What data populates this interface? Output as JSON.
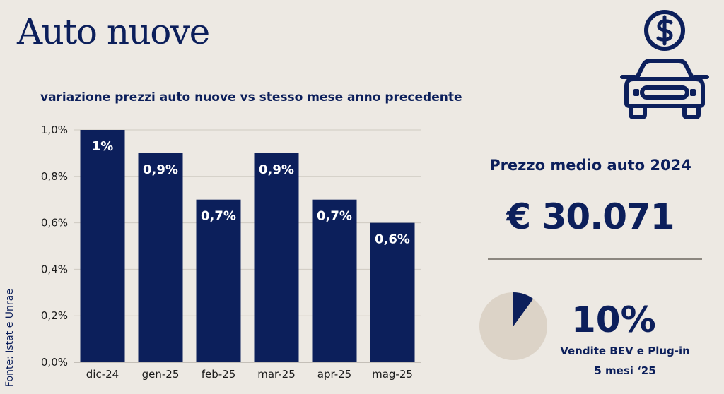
{
  "header": {
    "title": "Auto nuove"
  },
  "source": "Fonte: Istat e Unrae",
  "chart_data": {
    "type": "bar",
    "title": "variazione prezzi auto nuove vs stesso mese anno precedente",
    "categories": [
      "dic-24",
      "gen-25",
      "feb-25",
      "mar-25",
      "apr-25",
      "mag-25"
    ],
    "values": [
      1.0,
      0.9,
      0.7,
      0.9,
      0.7,
      0.6
    ],
    "data_labels": [
      "1%",
      "0,9%",
      "0,7%",
      "0,9%",
      "0,7%",
      "0,6%"
    ],
    "y_ticks": [
      "0,0%",
      "0,2%",
      "0,4%",
      "0,6%",
      "0,8%",
      "1,0%"
    ],
    "ylim": [
      0,
      1.0
    ],
    "grid": true,
    "bar_color": "#0c1f5b"
  },
  "kpi": {
    "label": "Prezzo medio auto 2024",
    "value": "€ 30.071"
  },
  "share": {
    "value": "10%",
    "fraction": 0.1,
    "label": "Vendite BEV e Plug-in",
    "period": "5 mesi ‘25",
    "fill_color": "#0c1f5b",
    "background_color": "#dcd3c7"
  },
  "icons": {
    "car": "car-icon",
    "money": "dollar-coin-icon"
  },
  "colors": {
    "navy": "#0c1f5b",
    "background": "#ede9e3"
  }
}
